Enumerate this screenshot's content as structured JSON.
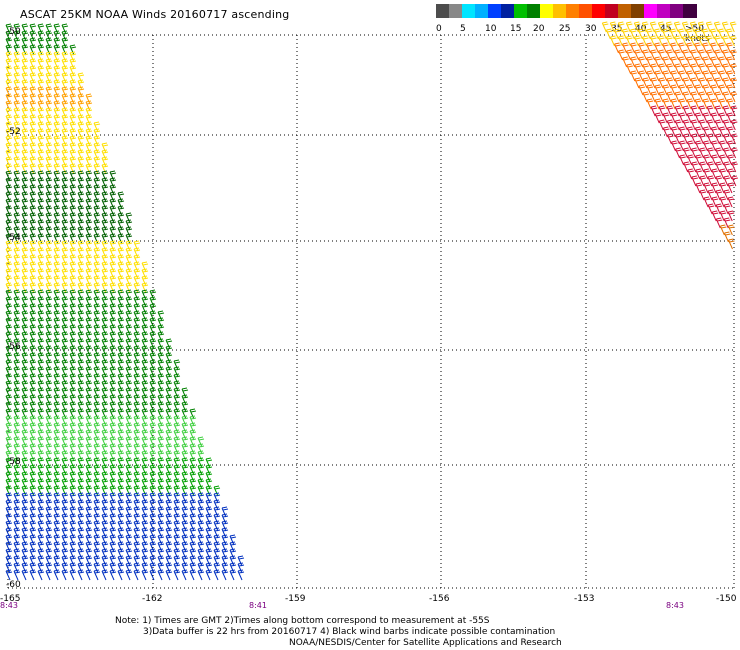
{
  "title": "ASCAT 25KM NOAA Winds 20160717 ascending",
  "legend": {
    "labels": [
      "0",
      "5",
      "10",
      "15",
      "20",
      "25",
      "30",
      "35",
      "40",
      "45",
      ">50 knots"
    ],
    "colors": [
      "#4d4d4d",
      "#888888",
      "#00e5ff",
      "#00b0ff",
      "#0040ff",
      "#0020a0",
      "#00c000",
      "#008000",
      "#ffff00",
      "#ffc000",
      "#ff8000",
      "#ff5000",
      "#ff0000",
      "#c00020",
      "#c06000",
      "#804000",
      "#ff00ff",
      "#c000c0",
      "#800080",
      "#400040"
    ]
  },
  "map": {
    "lat_labels": [
      "-50",
      "-52",
      "-54",
      "-56",
      "-58",
      "-60"
    ],
    "lon_labels": [
      "-165",
      "-162",
      "-159",
      "-156",
      "-153",
      "-150"
    ],
    "time_labels": [
      "8:43",
      "8:41",
      "8:43"
    ]
  },
  "swaths": [
    {
      "name": "left-swath",
      "bands": [
        {
          "color": "#008000",
          "y0": 28,
          "y1": 60
        },
        {
          "color": "#ffe000",
          "y0": 60,
          "y1": 92
        },
        {
          "color": "#ffa000",
          "y0": 92,
          "y1": 118
        },
        {
          "color": "#ffe000",
          "y0": 118,
          "y1": 176
        },
        {
          "color": "#006000",
          "y0": 176,
          "y1": 250
        },
        {
          "color": "#ffe000",
          "y0": 250,
          "y1": 300
        },
        {
          "color": "#008000",
          "y0": 300,
          "y1": 420
        },
        {
          "color": "#40d040",
          "y0": 420,
          "y1": 462
        },
        {
          "color": "#00a000",
          "y0": 462,
          "y1": 500
        },
        {
          "color": "#0030c0",
          "y0": 500,
          "y1": 590
        }
      ]
    },
    {
      "name": "right-swath",
      "bands": [
        {
          "color": "#ffd000",
          "y0": 28,
          "y1": 50
        },
        {
          "color": "#ff7000",
          "y0": 50,
          "y1": 110
        },
        {
          "color": "#d0103a",
          "y0": 110,
          "y1": 230
        },
        {
          "color": "#e07000",
          "y0": 230,
          "y1": 260
        }
      ]
    }
  ],
  "notes": {
    "line1": "Note: 1) Times are GMT 2)Times along bottom correspond to measurement at -55S",
    "line2": "3)Data buffer is 22 hrs from 20160717 4) Black wind barbs indicate possible contamination",
    "line3": "NOAA/NESDIS/Center for Satellite Applications and Research"
  }
}
